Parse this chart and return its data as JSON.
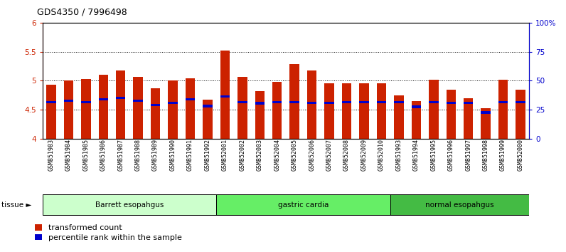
{
  "title": "GDS4350 / 7996498",
  "samples": [
    "GSM851983",
    "GSM851984",
    "GSM851985",
    "GSM851986",
    "GSM851987",
    "GSM851988",
    "GSM851989",
    "GSM851990",
    "GSM851991",
    "GSM851992",
    "GSM852001",
    "GSM852002",
    "GSM852003",
    "GSM852004",
    "GSM852005",
    "GSM852006",
    "GSM852007",
    "GSM852008",
    "GSM852009",
    "GSM852010",
    "GSM851993",
    "GSM851994",
    "GSM851995",
    "GSM851996",
    "GSM851997",
    "GSM851998",
    "GSM851999",
    "GSM852000"
  ],
  "red_values": [
    4.93,
    5.0,
    5.03,
    5.1,
    5.17,
    5.07,
    4.87,
    5.0,
    5.04,
    4.67,
    5.52,
    5.07,
    4.82,
    4.98,
    5.28,
    5.17,
    4.96,
    4.96,
    4.96,
    4.95,
    4.75,
    4.65,
    5.02,
    4.84,
    4.7,
    4.53,
    5.01,
    4.84
  ],
  "blue_values": [
    4.63,
    4.65,
    4.63,
    4.68,
    4.7,
    4.65,
    4.58,
    4.62,
    4.68,
    4.56,
    4.73,
    4.63,
    4.61,
    4.63,
    4.63,
    4.62,
    4.62,
    4.63,
    4.63,
    4.63,
    4.63,
    4.55,
    4.63,
    4.62,
    4.62,
    4.45,
    4.63,
    4.63
  ],
  "groups": [
    {
      "label": "Barrett esopahgus",
      "start": 0,
      "end": 9
    },
    {
      "label": "gastric cardia",
      "start": 10,
      "end": 19
    },
    {
      "label": "normal esopahgus",
      "start": 20,
      "end": 27
    }
  ],
  "group_colors": [
    "#ccffcc",
    "#66ee66",
    "#44bb44"
  ],
  "ylim": [
    4.0,
    6.0
  ],
  "yticks": [
    4.0,
    4.5,
    5.0,
    5.5,
    6.0
  ],
  "ytick_labels": [
    "4",
    "4.5",
    "5",
    "5.5",
    "6"
  ],
  "right_yticks": [
    0,
    25,
    50,
    75,
    100
  ],
  "right_ytick_labels": [
    "0",
    "25",
    "50",
    "75",
    "100%"
  ],
  "grid_vals": [
    4.5,
    5.0,
    5.5
  ],
  "bar_color": "#cc2200",
  "blue_color": "#0000cc",
  "bar_width": 0.55
}
